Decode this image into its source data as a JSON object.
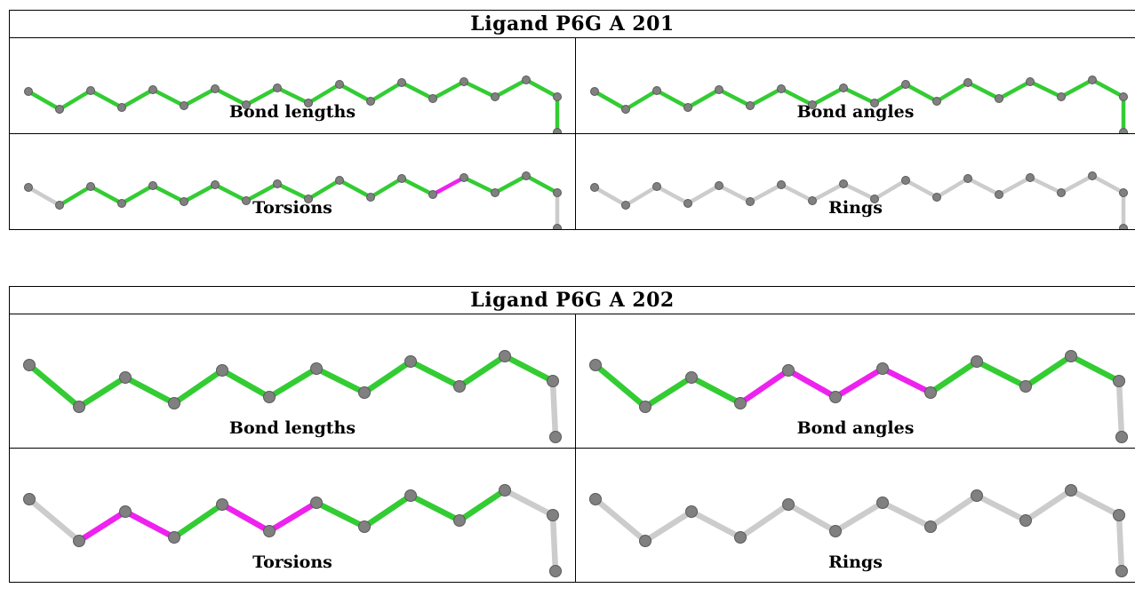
{
  "colors": {
    "ok": "#33cc33",
    "outlier": "#ee22ee",
    "na": "#cccccc",
    "atom": "#808080",
    "atom_dark": "#5a5a5a"
  },
  "ligands": [
    {
      "title": "Ligand P6G A 201",
      "panels": [
        {
          "label": "Bond lengths",
          "statuses": [
            "ok",
            "ok",
            "ok",
            "ok",
            "ok",
            "ok",
            "ok",
            "ok",
            "ok",
            "ok",
            "ok",
            "ok",
            "ok",
            "ok",
            "ok",
            "ok",
            "ok",
            "ok"
          ]
        },
        {
          "label": "Bond angles",
          "statuses": [
            "ok",
            "ok",
            "ok",
            "ok",
            "ok",
            "ok",
            "ok",
            "ok",
            "ok",
            "ok",
            "ok",
            "ok",
            "ok",
            "ok",
            "ok",
            "ok",
            "ok",
            "ok"
          ]
        },
        {
          "label": "Torsions",
          "statuses": [
            "na",
            "ok",
            "ok",
            "ok",
            "ok",
            "ok",
            "ok",
            "ok",
            "ok",
            "ok",
            "ok",
            "ok",
            "ok",
            "outlier",
            "ok",
            "ok",
            "ok",
            "na"
          ]
        },
        {
          "label": "Rings",
          "statuses": [
            "na",
            "na",
            "na",
            "na",
            "na",
            "na",
            "na",
            "na",
            "na",
            "na",
            "na",
            "na",
            "na",
            "na",
            "na",
            "na",
            "na",
            "na"
          ]
        }
      ]
    },
    {
      "title": "Ligand P6G A 202",
      "panels": [
        {
          "label": "Bond lengths",
          "statuses": [
            "ok",
            "ok",
            "ok",
            "ok",
            "ok",
            "ok",
            "ok",
            "ok",
            "ok",
            "ok",
            "ok"
          ]
        },
        {
          "label": "Bond angles",
          "statuses": [
            "ok",
            "ok",
            "ok",
            "outlier",
            "outlier",
            "outlier",
            "outlier",
            "ok",
            "ok",
            "ok",
            "ok"
          ]
        },
        {
          "label": "Torsions",
          "statuses": [
            "na",
            "outlier",
            "outlier",
            "ok",
            "outlier",
            "outlier",
            "ok",
            "ok",
            "ok",
            "ok",
            "na"
          ]
        },
        {
          "label": "Rings",
          "statuses": [
            "na",
            "na",
            "na",
            "na",
            "na",
            "na",
            "na",
            "na",
            "na",
            "na",
            "na"
          ]
        }
      ]
    }
  ]
}
